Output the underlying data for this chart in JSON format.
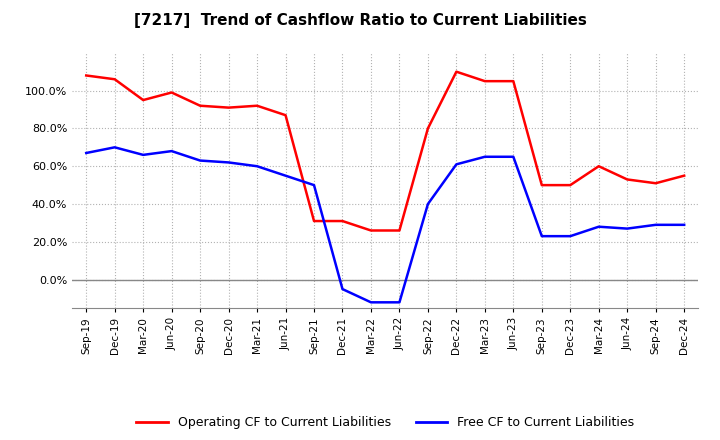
{
  "title": "[7217]  Trend of Cashflow Ratio to Current Liabilities",
  "x_labels": [
    "Sep-19",
    "Dec-19",
    "Mar-20",
    "Jun-20",
    "Sep-20",
    "Dec-20",
    "Mar-21",
    "Jun-21",
    "Sep-21",
    "Dec-21",
    "Mar-22",
    "Jun-22",
    "Sep-22",
    "Dec-22",
    "Mar-23",
    "Jun-23",
    "Sep-23",
    "Dec-23",
    "Mar-24",
    "Jun-24",
    "Sep-24",
    "Dec-24"
  ],
  "operating_cf": [
    1.08,
    1.06,
    0.95,
    0.99,
    0.92,
    0.91,
    0.92,
    0.87,
    0.31,
    0.31,
    0.26,
    0.26,
    0.8,
    1.1,
    1.05,
    1.05,
    0.5,
    0.5,
    0.6,
    0.53,
    0.51,
    0.55
  ],
  "free_cf": [
    0.67,
    0.7,
    0.66,
    0.68,
    0.63,
    0.62,
    0.6,
    0.55,
    0.5,
    -0.05,
    -0.12,
    -0.12,
    0.4,
    0.61,
    0.65,
    0.65,
    0.23,
    0.23,
    0.28,
    0.27,
    0.29,
    0.29
  ],
  "operating_color": "#FF0000",
  "free_color": "#0000FF",
  "background_color": "#FFFFFF",
  "grid_color": "#AAAAAA",
  "ylim": [
    -0.15,
    1.2
  ],
  "yticks": [
    0.0,
    0.2,
    0.4,
    0.6,
    0.8,
    1.0
  ],
  "legend_labels": [
    "Operating CF to Current Liabilities",
    "Free CF to Current Liabilities"
  ]
}
